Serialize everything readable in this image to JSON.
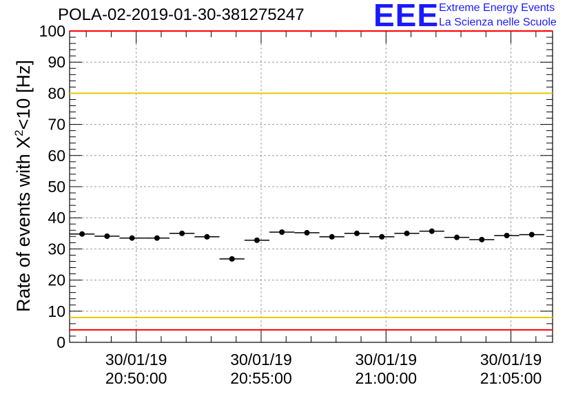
{
  "title": "POLA-02-2019-01-30-381275247",
  "logo": {
    "mark": "EEE",
    "line1": "Extreme Energy Events",
    "line2": "La Scienza nelle Scuole"
  },
  "chart_data": {
    "type": "scatter",
    "ylabel_prefix": "Rate of events with X",
    "ylabel_sup": "2",
    "ylabel_suffix": "<10 [Hz]",
    "ylim": [
      0,
      100
    ],
    "yticks": [
      0,
      10,
      20,
      30,
      40,
      50,
      60,
      70,
      80,
      90,
      100
    ],
    "xlim": [
      "20:47:20",
      "21:06:40"
    ],
    "xticks": [
      {
        "time": "20:50:00",
        "date": "30/01/19"
      },
      {
        "time": "20:55:00",
        "date": "30/01/19"
      },
      {
        "time": "21:00:00",
        "date": "30/01/19"
      },
      {
        "time": "21:05:00",
        "date": "30/01/19"
      }
    ],
    "grid": true,
    "bin_width_s": 60,
    "x": [
      "20:47:50",
      "20:48:50",
      "20:49:50",
      "20:50:50",
      "20:51:50",
      "20:52:50",
      "20:53:50",
      "20:54:50",
      "20:55:50",
      "20:56:50",
      "20:57:50",
      "20:58:50",
      "20:59:50",
      "21:00:50",
      "21:01:50",
      "21:02:50",
      "21:03:50",
      "21:04:50",
      "21:05:50"
    ],
    "values": [
      34.8,
      34.1,
      33.5,
      33.5,
      35.0,
      33.9,
      26.8,
      32.8,
      35.4,
      35.2,
      33.9,
      35.0,
      33.9,
      35.0,
      35.7,
      33.7,
      33.0,
      34.3,
      34.6
    ],
    "reference_lines": [
      {
        "value": 100,
        "color": "#ff0000"
      },
      {
        "value": 80,
        "color": "#e8c800"
      },
      {
        "value": 8,
        "color": "#e8c800"
      },
      {
        "value": 4,
        "color": "#ff0000"
      }
    ]
  }
}
